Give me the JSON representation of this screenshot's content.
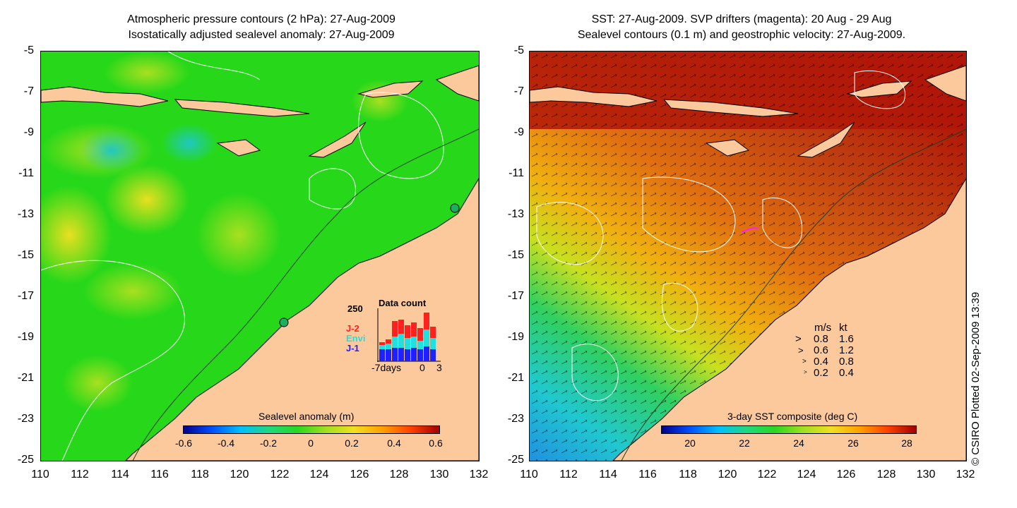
{
  "left": {
    "title_line1": "Atmospheric pressure contours (2 hPa): 27-Aug-2009",
    "title_line2": "Isostatically adjusted sealevel anomaly: 27-Aug-2009",
    "colorbar_label": "Sealevel anomaly (m)",
    "colorbar_ticks": [
      "-0.6",
      "-0.4",
      "-0.2",
      "0",
      "0.2",
      "0.4",
      "0.6"
    ],
    "colors": {
      "ocean": "#27d81a",
      "land": "#fcc99c"
    },
    "datacount": {
      "title": "Data count",
      "ymax": "250",
      "series": [
        {
          "name": "J-2",
          "color": "#ff2020"
        },
        {
          "name": "Envi",
          "color": "#20e0e0"
        },
        {
          "name": "J-1",
          "color": "#2020ff"
        }
      ],
      "x_labels": [
        "-7days",
        "0",
        "3"
      ]
    }
  },
  "right": {
    "title_line1": "SST: 27-Aug-2009. SVP drifters (magenta): 20 Aug - 29 Aug",
    "title_line2": "Sealevel contours (0.1 m) and geostrophic velocity: 27-Aug-2009.",
    "colorbar_label": "3-day SST composite (deg C)",
    "colorbar_ticks": [
      "20",
      "22",
      "24",
      "26",
      "28"
    ],
    "colors": {
      "ocean": "#b83a0a",
      "land": "#fcc99c"
    },
    "velocity_legend": {
      "headers": [
        "m/s",
        "kt"
      ],
      "rows": [
        [
          "0.8",
          "1.6"
        ],
        [
          "0.6",
          "1.2"
        ],
        [
          "0.4",
          "0.8"
        ],
        [
          "0.2",
          "0.4"
        ]
      ]
    }
  },
  "axes": {
    "y_ticks": [
      "-5",
      "-7",
      "-9",
      "-11",
      "-13",
      "-15",
      "-17",
      "-19",
      "-21",
      "-23",
      "-25"
    ],
    "x_ticks": [
      "110",
      "112",
      "114",
      "116",
      "118",
      "120",
      "122",
      "124",
      "126",
      "128",
      "130",
      "132"
    ]
  },
  "credit": "© CSIRO Plotted 02-Sep-2009 13:39"
}
